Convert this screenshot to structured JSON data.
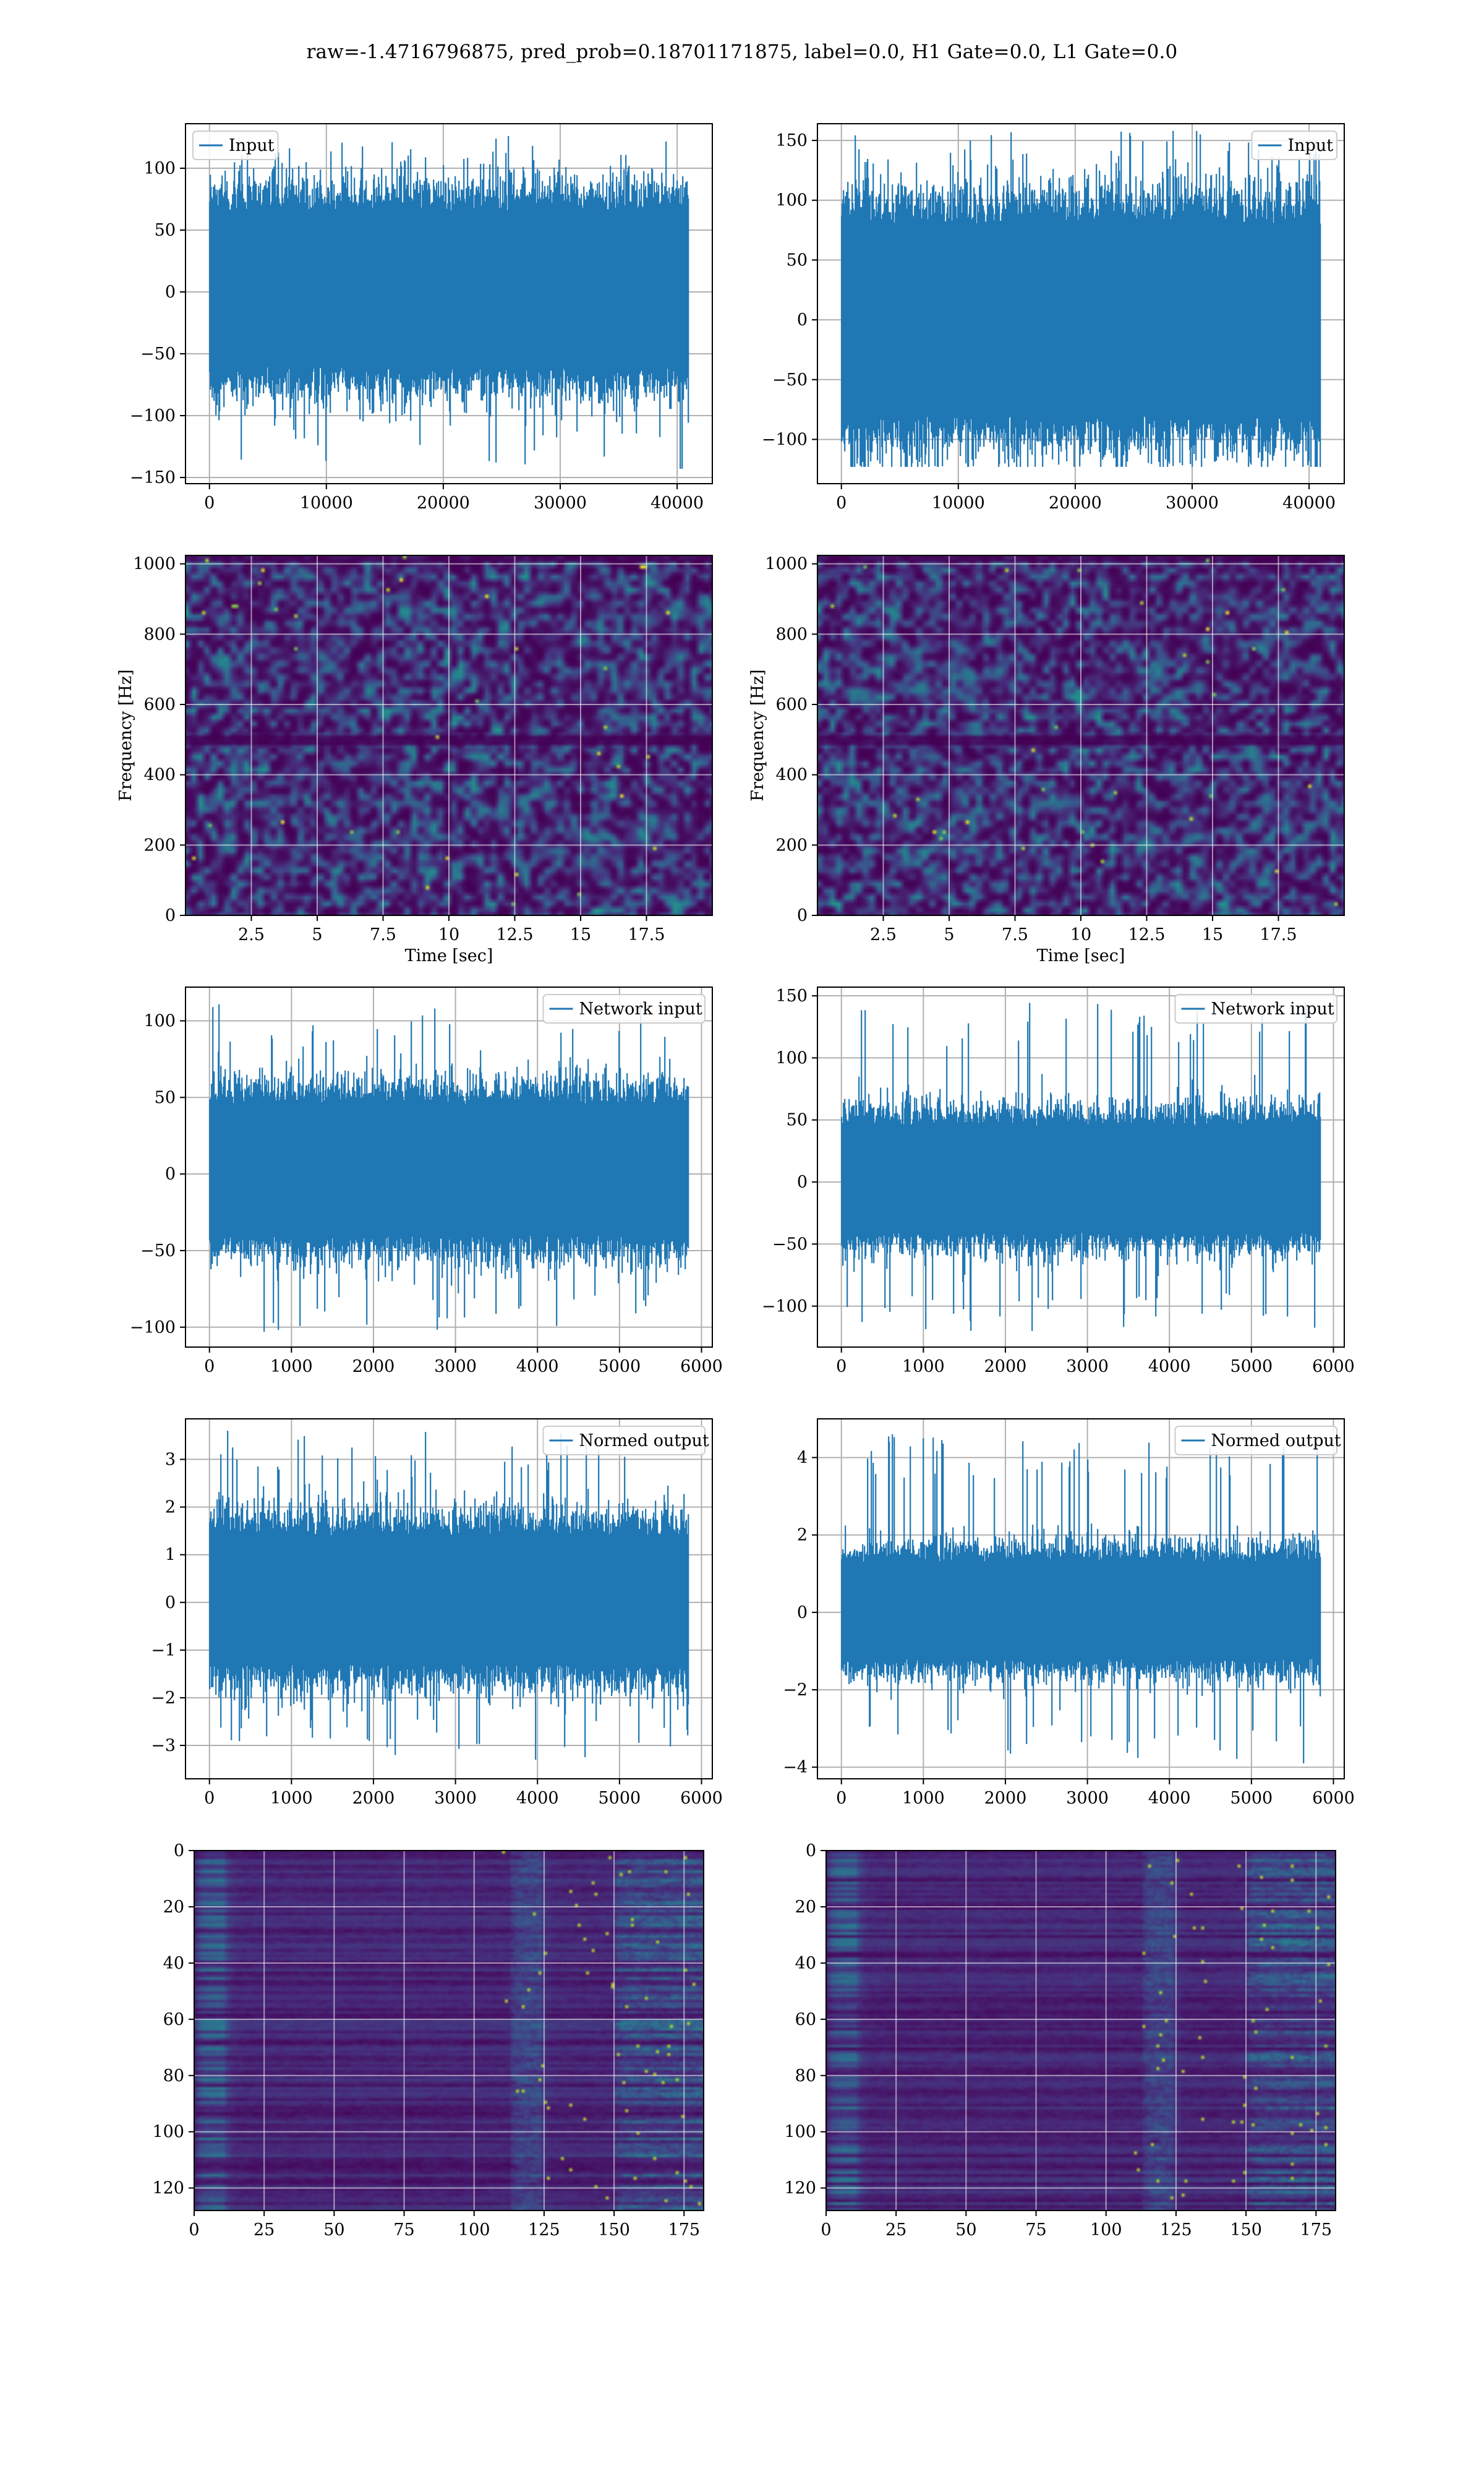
{
  "figure": {
    "title": "raw=-1.4716796875, pred_prob=0.18701171875, label=0.0, H1 Gate=0.0, L1 Gate=0.0",
    "line_color": "#1f77b4"
  },
  "chart_data": [
    {
      "id": "input_h1",
      "type": "line",
      "series": [
        {
          "name": "Input",
          "n": 40960,
          "amplitude_band": [
            -60,
            65
          ],
          "peak_min": -143,
          "peak_max": 126
        }
      ],
      "xlim": [
        -2048,
        43008
      ],
      "ylim": [
        -155,
        136
      ],
      "xticks": [
        0,
        10000,
        20000,
        30000,
        40000
      ],
      "yticks": [
        -150,
        -100,
        -50,
        0,
        50,
        100
      ],
      "legend": "top-left",
      "grid": true,
      "xlabel": "",
      "ylabel": ""
    },
    {
      "id": "input_l1",
      "type": "line",
      "series": [
        {
          "name": "Input",
          "n": 40960,
          "amplitude_band": [
            -80,
            80
          ],
          "peak_min": -123,
          "peak_max": 158
        }
      ],
      "xlim": [
        -2048,
        43008
      ],
      "ylim": [
        -137,
        164
      ],
      "xticks": [
        0,
        10000,
        20000,
        30000,
        40000
      ],
      "yticks": [
        -100,
        -50,
        0,
        50,
        100,
        150
      ],
      "legend": "top-right",
      "grid": true,
      "xlabel": "",
      "ylabel": ""
    },
    {
      "id": "spec_h1",
      "type": "heatmap",
      "xlabel": "Time [sec]",
      "ylabel": "Frequency [Hz]",
      "xlim": [
        0,
        20
      ],
      "ylim": [
        0,
        1024
      ],
      "xticks": [
        2.5,
        5.0,
        7.5,
        10.0,
        12.5,
        15.0,
        17.5
      ],
      "yticks": [
        0,
        200,
        400,
        600,
        800,
        1000
      ],
      "colormap": "viridis",
      "dark_band_hz": [
        492,
        516
      ],
      "grid": true
    },
    {
      "id": "spec_l1",
      "type": "heatmap",
      "xlabel": "Time [sec]",
      "ylabel": "Frequency [Hz]",
      "xlim": [
        0,
        20
      ],
      "ylim": [
        0,
        1024
      ],
      "xticks": [
        2.5,
        5.0,
        7.5,
        10.0,
        12.5,
        15.0,
        17.5
      ],
      "yticks": [
        0,
        200,
        400,
        600,
        800,
        1000
      ],
      "colormap": "viridis",
      "dark_band_hz": [
        492,
        516
      ],
      "grid": true
    },
    {
      "id": "net_h1",
      "type": "line",
      "series": [
        {
          "name": "Network input",
          "n": 5840,
          "amplitude_band": [
            -40,
            45
          ],
          "peak_min": -103,
          "peak_max": 112
        }
      ],
      "xlim": [
        -292,
        6132
      ],
      "ylim": [
        -113,
        122
      ],
      "xticks": [
        0,
        1000,
        2000,
        3000,
        4000,
        5000,
        6000
      ],
      "yticks": [
        -100,
        -50,
        0,
        50,
        100
      ],
      "legend": "top-right",
      "grid": true,
      "xlabel": "",
      "ylabel": ""
    },
    {
      "id": "net_l1",
      "type": "line",
      "series": [
        {
          "name": "Network input",
          "n": 5840,
          "amplitude_band": [
            -40,
            45
          ],
          "peak_min": -120,
          "peak_max": 145
        }
      ],
      "xlim": [
        -292,
        6132
      ],
      "ylim": [
        -133,
        157
      ],
      "xticks": [
        0,
        1000,
        2000,
        3000,
        4000,
        5000,
        6000
      ],
      "yticks": [
        -100,
        -50,
        0,
        50,
        100,
        150
      ],
      "legend": "top-right",
      "grid": true,
      "xlabel": "",
      "ylabel": ""
    },
    {
      "id": "norm_h1",
      "type": "line",
      "series": [
        {
          "name": "Normed output",
          "n": 5840,
          "amplitude_band": [
            -1.3,
            1.4
          ],
          "peak_min": -3.3,
          "peak_max": 3.6
        }
      ],
      "xlim": [
        -292,
        6132
      ],
      "ylim": [
        -3.7,
        3.85
      ],
      "xticks": [
        0,
        1000,
        2000,
        3000,
        4000,
        5000,
        6000
      ],
      "yticks": [
        -3,
        -2,
        -1,
        0,
        1,
        2,
        3
      ],
      "legend": "top-right",
      "grid": true,
      "xlabel": "",
      "ylabel": ""
    },
    {
      "id": "norm_l1",
      "type": "line",
      "series": [
        {
          "name": "Normed output",
          "n": 5840,
          "amplitude_band": [
            -1.2,
            1.3
          ],
          "peak_min": -3.9,
          "peak_max": 4.6
        }
      ],
      "xlim": [
        -292,
        6132
      ],
      "ylim": [
        -4.3,
        5.0
      ],
      "xticks": [
        0,
        1000,
        2000,
        3000,
        4000,
        5000,
        6000
      ],
      "yticks": [
        -4,
        -2,
        0,
        2,
        4
      ],
      "legend": "top-right",
      "grid": true,
      "xlabel": "",
      "ylabel": ""
    },
    {
      "id": "feat_h1",
      "type": "heatmap",
      "rows": 128,
      "cols": 182,
      "xlim": [
        0,
        182
      ],
      "ylim": [
        128,
        0
      ],
      "xticks": [
        0,
        25,
        50,
        75,
        100,
        125,
        150,
        175
      ],
      "yticks": [
        0,
        20,
        40,
        60,
        80,
        100,
        120
      ],
      "colormap": "viridis",
      "grid": true,
      "xlabel": "",
      "ylabel": ""
    },
    {
      "id": "feat_l1",
      "type": "heatmap",
      "rows": 128,
      "cols": 182,
      "xlim": [
        0,
        182
      ],
      "ylim": [
        128,
        0
      ],
      "xticks": [
        0,
        25,
        50,
        75,
        100,
        125,
        150,
        175
      ],
      "yticks": [
        0,
        20,
        40,
        60,
        80,
        100,
        120
      ],
      "colormap": "viridis",
      "grid": true,
      "xlabel": "",
      "ylabel": ""
    }
  ]
}
